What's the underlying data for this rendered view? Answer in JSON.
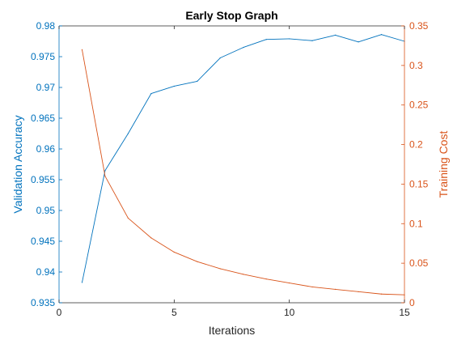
{
  "chart_data": {
    "type": "line",
    "title": "Early Stop Graph",
    "xlabel": "Iterations",
    "xlim": [
      0,
      15
    ],
    "xticks": [
      0,
      5,
      10,
      15
    ],
    "grid": false,
    "legend": "none",
    "y_left": {
      "label": "Validation Accuracy",
      "ylim": [
        0.935,
        0.98
      ],
      "ticks": [
        0.935,
        0.94,
        0.945,
        0.95,
        0.955,
        0.96,
        0.965,
        0.97,
        0.975,
        0.98
      ],
      "tick_labels": [
        "0.935",
        "0.94",
        "0.945",
        "0.95",
        "0.955",
        "0.96",
        "0.965",
        "0.97",
        "0.975",
        "0.98"
      ],
      "color": "#0072bd"
    },
    "y_right": {
      "label": "Training Cost",
      "ylim": [
        0,
        0.35
      ],
      "ticks": [
        0,
        0.05,
        0.1,
        0.15,
        0.2,
        0.25,
        0.3,
        0.35
      ],
      "tick_labels": [
        "0",
        "0.05",
        "0.1",
        "0.15",
        "0.2",
        "0.25",
        "0.3",
        "0.35"
      ],
      "color": "#d95319"
    },
    "series": [
      {
        "axis": "left",
        "color": "#0072bd",
        "x": [
          1,
          2,
          3,
          4,
          5,
          6,
          7,
          8,
          9,
          10,
          11,
          12,
          13,
          14,
          15
        ],
        "values": [
          0.9383,
          0.9565,
          0.9625,
          0.969,
          0.9702,
          0.971,
          0.9748,
          0.9765,
          0.9778,
          0.9779,
          0.9776,
          0.9785,
          0.9774,
          0.9786,
          0.9775
        ]
      },
      {
        "axis": "right",
        "color": "#d95319",
        "x": [
          1,
          2,
          3,
          4,
          5,
          6,
          7,
          8,
          9,
          10,
          11,
          12,
          13,
          14,
          15
        ],
        "values": [
          0.32,
          0.16,
          0.107,
          0.082,
          0.064,
          0.052,
          0.043,
          0.036,
          0.03,
          0.025,
          0.02,
          0.017,
          0.014,
          0.011,
          0.01
        ]
      }
    ]
  }
}
